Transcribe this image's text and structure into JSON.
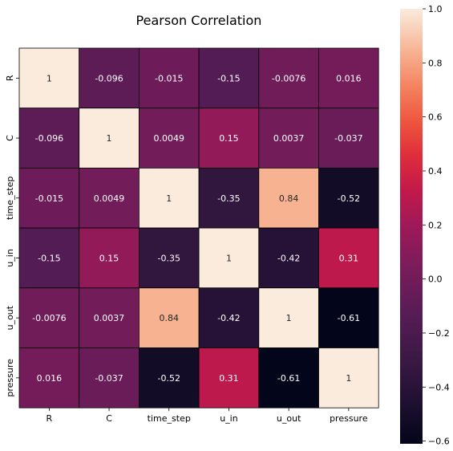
{
  "chart_data": {
    "type": "heatmap",
    "title": "Pearson Correlation",
    "xlabel": "",
    "ylabel": "",
    "x_categories": [
      "R",
      "C",
      "time_step",
      "u_in",
      "u_out",
      "pressure"
    ],
    "y_categories": [
      "R",
      "C",
      "time_step",
      "u_in",
      "u_out",
      "pressure"
    ],
    "values": [
      [
        1,
        -0.096,
        -0.015,
        -0.15,
        -0.0076,
        0.016
      ],
      [
        -0.096,
        1,
        0.0049,
        0.15,
        0.0037,
        -0.037
      ],
      [
        -0.015,
        0.0049,
        1,
        -0.35,
        0.84,
        -0.52
      ],
      [
        -0.15,
        0.15,
        -0.35,
        1,
        -0.42,
        0.31
      ],
      [
        -0.0076,
        0.0037,
        0.84,
        -0.42,
        1,
        -0.61
      ],
      [
        0.016,
        -0.037,
        -0.52,
        0.31,
        -0.61,
        1
      ]
    ],
    "colormap": "rocket",
    "colorbar": {
      "vmin": -0.61,
      "vmax": 1.0,
      "ticks": [
        1.0,
        0.8,
        0.6,
        0.4,
        0.2,
        0.0,
        -0.2,
        -0.4,
        -0.6
      ],
      "tick_labels": [
        "1.0",
        "0.8",
        "0.6",
        "0.4",
        "0.2",
        "0.0",
        "−0.2",
        "−0.4",
        "−0.6"
      ],
      "placement": "right"
    },
    "annotations": true,
    "cell_border_color": "#000000",
    "grid": false
  }
}
